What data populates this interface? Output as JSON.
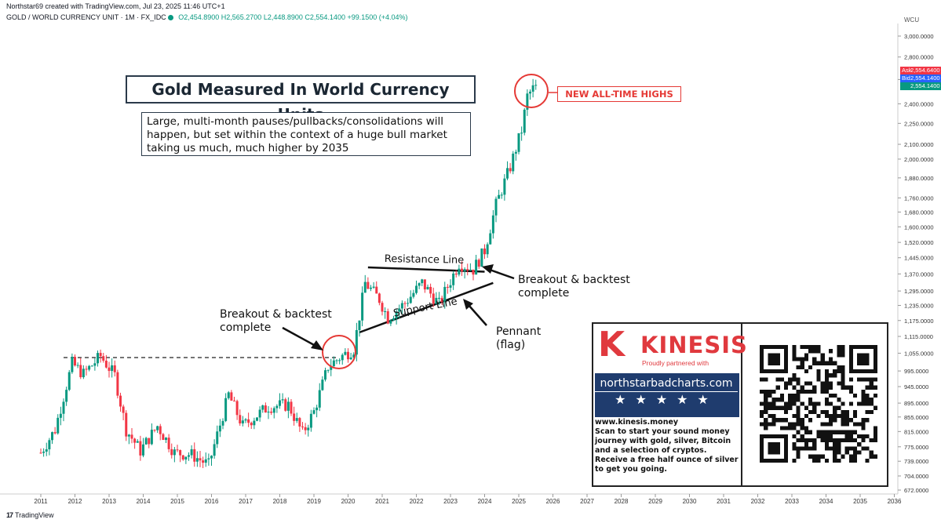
{
  "header": {
    "credit": "Northstar69 created with TradingView.com, Jul 23, 2025 11:46 UTC+1",
    "symbol": "GOLD / WORLD CURRENCY UNIT · 1M · FX_IDC",
    "ohlc": {
      "open": "O2,454.8900",
      "high": "H2,565.2700",
      "low": "L2,448.8900",
      "close": "C2,554.1400",
      "change": "+99.1500 (+4.04%)"
    }
  },
  "axis": {
    "currency_label": "WCU",
    "price_ticks": [
      "3,000.0000",
      "2,800.0000",
      "2,600.0000",
      "2,400.0000",
      "2,250.0000",
      "2,100.0000",
      "2,000.0000",
      "1,880.0000",
      "1,760.0000",
      "1,680.0000",
      "1,600.0000",
      "1,520.0000",
      "1,445.0000",
      "1,370.0000",
      "1,295.0000",
      "1,235.0000",
      "1,175.0000",
      "1,115.0000",
      "1,055.0000",
      "995.0000",
      "945.0000",
      "895.0000",
      "855.0000",
      "815.0000",
      "775.0000",
      "739.0000",
      "704.0000",
      "672.0000"
    ],
    "price_tags": [
      {
        "prefix": "Ask",
        "value": "2,554.6400",
        "color": "#f23645"
      },
      {
        "prefix": "Bid",
        "value": "2,554.1400",
        "color": "#2962ff"
      },
      {
        "prefix": "",
        "value": "2,554.1400",
        "color": "#089981"
      }
    ]
  },
  "footer": {
    "brand": "TradingView"
  },
  "annotations": {
    "title": "Gold Measured In World Currency Units",
    "description": "Large, multi-month pauses/pullbacks/consolidations will happen, but set within the context of a huge bull market taking us much, much higher by 2035",
    "ath": "NEW ALL-TIME HIGHS",
    "breakout_left_1": "Breakout & backtest",
    "breakout_left_2": "complete",
    "breakout_right_1": "Breakout & backtest",
    "breakout_right_2": "complete",
    "pennant_1": "Pennant",
    "pennant_2": "(flag)",
    "resistance": "Resistance Line",
    "support": "Support Line"
  },
  "promo": {
    "brand": "KINESIS",
    "brand_letter": "K",
    "tagline": "Proudly partnered with",
    "site": "northstarbadcharts.com",
    "stars": "★★★★★",
    "url": "www.kinesis.money",
    "body": "Scan to start your sound money journey with gold, silver, Bitcoin and a selection of cryptos. Receive a free half ounce of silver to get you going."
  },
  "colors": {
    "up": "#089981",
    "down": "#f23645",
    "highlight": "#e53935",
    "banner": "#1f3c6e"
  },
  "chart_data": {
    "type": "candlestick",
    "title": "Gold Measured In World Currency Units",
    "interval": "1M",
    "scale": "log",
    "x_axis": {
      "ticks": [
        "2011",
        "2012",
        "2013",
        "2014",
        "2015",
        "2016",
        "2017",
        "2018",
        "2019",
        "2020",
        "2021",
        "2022",
        "2023",
        "2024",
        "2025",
        "2026",
        "2027",
        "2028",
        "2029",
        "2030",
        "2031",
        "2032",
        "2033",
        "2034",
        "2035",
        "2036"
      ],
      "range": [
        "2010-09",
        "2036-02"
      ]
    },
    "y_axis": {
      "range": [
        672,
        3000
      ],
      "ticks": [
        3000,
        2800,
        2600,
        2400,
        2250,
        2100,
        2000,
        1880,
        1760,
        1680,
        1600,
        1520,
        1445,
        1370,
        1295,
        1235,
        1175,
        1115,
        1055,
        995,
        945,
        895,
        855,
        815,
        775,
        739,
        704,
        672
      ]
    },
    "last_price": 2554.14,
    "anchors": [
      {
        "date": "2011-01",
        "close": 760
      },
      {
        "date": "2011-06",
        "close": 820
      },
      {
        "date": "2011-12",
        "close": 1020
      },
      {
        "date": "2012-04",
        "close": 985
      },
      {
        "date": "2012-10",
        "close": 1045
      },
      {
        "date": "2013-03",
        "close": 980
      },
      {
        "date": "2013-07",
        "close": 820
      },
      {
        "date": "2013-12",
        "close": 765
      },
      {
        "date": "2014-06",
        "close": 830
      },
      {
        "date": "2014-12",
        "close": 760
      },
      {
        "date": "2015-06",
        "close": 755
      },
      {
        "date": "2015-12",
        "close": 730
      },
      {
        "date": "2016-07",
        "close": 920
      },
      {
        "date": "2016-12",
        "close": 830
      },
      {
        "date": "2017-09",
        "close": 885
      },
      {
        "date": "2018-04",
        "close": 890
      },
      {
        "date": "2018-09",
        "close": 810
      },
      {
        "date": "2019-01",
        "close": 870
      },
      {
        "date": "2019-06",
        "close": 1010
      },
      {
        "date": "2019-10",
        "close": 1040
      },
      {
        "date": "2020-03",
        "close": 1070
      },
      {
        "date": "2020-07",
        "close": 1330
      },
      {
        "date": "2020-12",
        "close": 1260
      },
      {
        "date": "2021-03",
        "close": 1185
      },
      {
        "date": "2021-09",
        "close": 1245
      },
      {
        "date": "2022-03",
        "close": 1330
      },
      {
        "date": "2022-09",
        "close": 1240
      },
      {
        "date": "2023-04",
        "close": 1420
      },
      {
        "date": "2023-09",
        "close": 1390
      },
      {
        "date": "2024-01",
        "close": 1480
      },
      {
        "date": "2024-05",
        "close": 1720
      },
      {
        "date": "2024-10",
        "close": 1950
      },
      {
        "date": "2025-02",
        "close": 2200
      },
      {
        "date": "2025-04",
        "close": 2460
      },
      {
        "date": "2025-07",
        "close": 2554
      }
    ],
    "levels": [
      {
        "name": "prior-high",
        "price": 1040,
        "from": "2011-09",
        "to": "2019-09",
        "style": "dashed"
      },
      {
        "name": "resistance",
        "from": [
          "2020-08",
          1400
        ],
        "to": [
          "2024-01",
          1380
        ]
      },
      {
        "name": "support",
        "from": [
          "2020-05",
          1130
        ],
        "to": [
          "2024-04",
          1330
        ]
      }
    ]
  }
}
